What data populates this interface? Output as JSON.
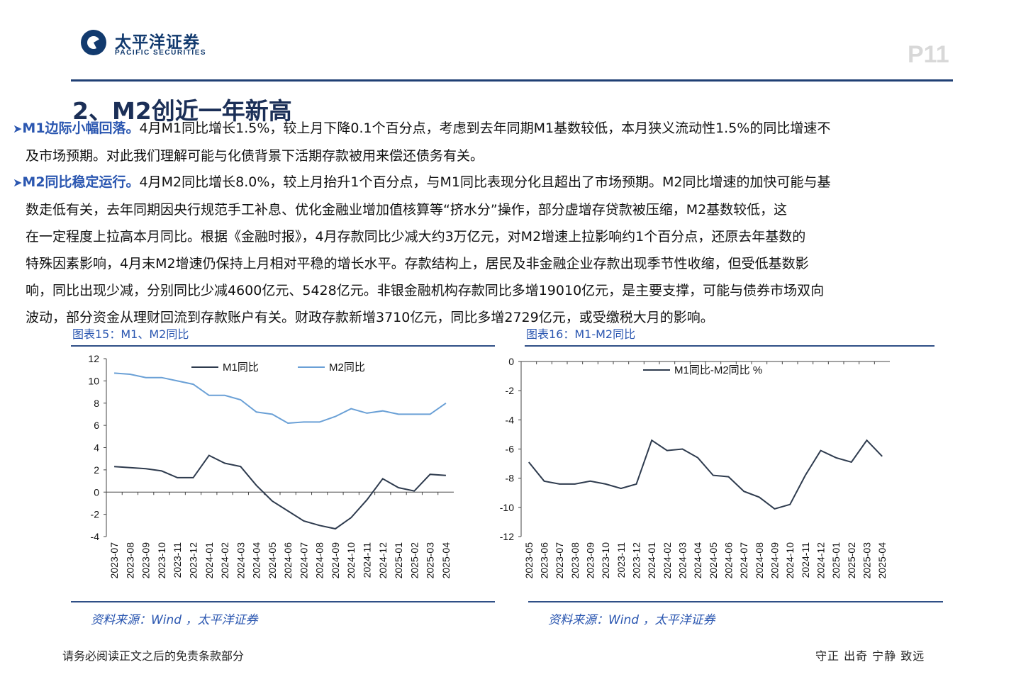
{
  "header": {
    "logo_cn": "太平洋证券",
    "logo_en": "PACIFIC SECURITIES",
    "page_number": "P11"
  },
  "section_title": "2、M2创近一年新高",
  "paragraphs": [
    {
      "bullet": "➤",
      "lead": "M1边际小幅回落。",
      "lines": [
        "4月M1同比增长1.5%，较上月下降0.1个百分点，考虑到去年同期M1基数较低，本月狭义流动性1.5%的同比增速不",
        "及市场预期。对此我们理解可能与化债背景下活期存款被用来偿还债务有关。"
      ]
    },
    {
      "bullet": "➤",
      "lead": "M2同比稳定运行。",
      "lines": [
        "4月M2同比增长8.0%，较上月抬升1个百分点，与M1同比表现分化且超出了市场预期。M2同比增速的加快可能与基",
        "数走低有关，去年同期因央行规范手工补息、优化金融业增加值核算等“挤水分”操作，部分虚增存贷款被压缩，M2基数较低，这",
        "在一定程度上拉高本月同比。根据《金融时报》，4月存款同比少减大约3万亿元，对M2增速上拉影响约1个百分点，还原去年基数的",
        "特殊因素影响，4月末M2增速仍保持上月相对平稳的增长水平。存款结构上，居民及非金融企业存款出现季节性收缩，但受低基数影",
        "响，同比出现少减，分别同比少减4600亿元、5428亿元。非银金融机构存款同比多增19010亿元，是主要支撑，可能与债券市场双向",
        "波动，部分资金从理财回流到存款账户有关。财政存款新增3710亿元，同比多增2729亿元，或受缴税大月的影响。"
      ]
    }
  ],
  "charts": {
    "left": {
      "caption": "图表15：M1、M2同比",
      "source": "资料来源：Wind ，太平洋证券"
    },
    "right": {
      "caption": "图表16：M1-M2同比",
      "source": "资料来源：Wind ，太平洋证券"
    }
  },
  "chart_data": [
    {
      "type": "line",
      "categories": [
        "2023-07",
        "2023-08",
        "2023-09",
        "2023-10",
        "2023-11",
        "2023-12",
        "2024-01",
        "2024-02",
        "2024-03",
        "2024-04",
        "2024-05",
        "2024-06",
        "2024-07",
        "2024-08",
        "2024-09",
        "2024-10",
        "2024-11",
        "2024-12",
        "2025-01",
        "2025-02",
        "2025-03",
        "2025-04"
      ],
      "yticks": [
        12,
        10,
        8,
        6,
        4,
        2,
        0,
        -2,
        -4
      ],
      "ylim": [
        -4,
        12
      ],
      "legend_position": "top",
      "series": [
        {
          "name": "M1同比",
          "color": "#2e3b4e",
          "values": [
            2.3,
            2.2,
            2.1,
            1.9,
            1.3,
            1.3,
            3.3,
            2.6,
            2.3,
            0.6,
            -0.8,
            -1.7,
            -2.6,
            -3.0,
            -3.3,
            -2.3,
            -0.7,
            1.2,
            0.4,
            0.1,
            1.6,
            1.5
          ]
        },
        {
          "name": "M2同比",
          "color": "#6aa0d6",
          "values": [
            10.7,
            10.6,
            10.3,
            10.3,
            10.0,
            9.7,
            8.7,
            8.7,
            8.3,
            7.2,
            7.0,
            6.2,
            6.3,
            6.3,
            6.8,
            7.5,
            7.1,
            7.3,
            7.0,
            7.0,
            7.0,
            8.0
          ]
        }
      ]
    },
    {
      "type": "line",
      "categories": [
        "2023-05",
        "2023-06",
        "2023-07",
        "2023-08",
        "2023-09",
        "2023-10",
        "2023-11",
        "2023-12",
        "2024-01",
        "2024-02",
        "2024-03",
        "2024-04",
        "2024-05",
        "2024-06",
        "2024-07",
        "2024-08",
        "2024-09",
        "2024-10",
        "2024-11",
        "2024-12",
        "2025-01",
        "2025-02",
        "2025-03",
        "2025-04"
      ],
      "yticks": [
        0,
        -2,
        -4,
        -6,
        -8,
        -10,
        -12
      ],
      "ylim": [
        -12,
        0
      ],
      "legend_position": "top",
      "series": [
        {
          "name": "M1同比-M2同比 %",
          "color": "#2e3b4e",
          "values": [
            -6.9,
            -8.2,
            -8.4,
            -8.4,
            -8.2,
            -8.4,
            -8.7,
            -8.4,
            -5.4,
            -6.1,
            -6.0,
            -6.6,
            -7.8,
            -7.9,
            -8.9,
            -9.3,
            -10.1,
            -9.8,
            -7.8,
            -6.1,
            -6.6,
            -6.9,
            -5.4,
            -6.5
          ]
        }
      ]
    }
  ],
  "footer": {
    "disclaimer": "请务必阅读正文之后的免责条款部分",
    "motto": "守正  出奇  宁静  致远"
  }
}
